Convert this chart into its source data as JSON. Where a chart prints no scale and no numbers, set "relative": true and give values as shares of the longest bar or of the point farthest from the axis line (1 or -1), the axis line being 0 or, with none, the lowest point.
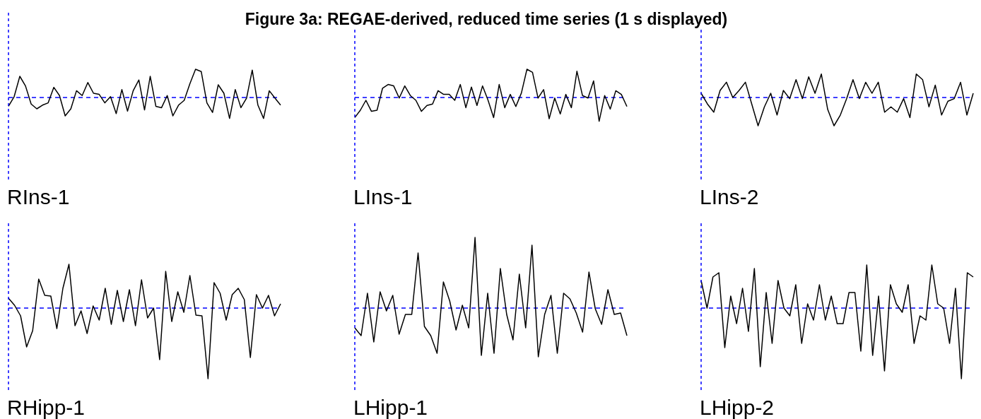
{
  "chart_data": [
    {
      "type": "other",
      "title": "Figure 3a: REGAE-derived, reduced time series (1 s displayed)"
    },
    {
      "type": "line",
      "xlabel": "RIns-1",
      "relative": true,
      "marker": "none",
      "categories": [
        null,
        null,
        null,
        null,
        null,
        null,
        null,
        null,
        null,
        null,
        null,
        null,
        null,
        null,
        null,
        null,
        null,
        null,
        null,
        null,
        null,
        null,
        null,
        null,
        null,
        null,
        null,
        null,
        null,
        null,
        null,
        null,
        null,
        null,
        null,
        null,
        null,
        null,
        null,
        null,
        null,
        null,
        null,
        null,
        null,
        null,
        null,
        null,
        null
      ],
      "series": [
        {
          "color": "#000000",
          "values": [
            -0.31,
            0.03,
            0.75,
            0.41,
            -0.23,
            -0.4,
            -0.27,
            -0.19,
            0.36,
            0.07,
            -0.65,
            -0.4,
            0.24,
            0.07,
            0.53,
            0.15,
            0.11,
            -0.19,
            0.03,
            -0.57,
            0.28,
            -0.48,
            0.24,
            0.62,
            -0.44,
            0.75,
            -0.31,
            -0.36,
            0.07,
            -0.65,
            -0.27,
            -0.1,
            0.49,
            1.0,
            0.92,
            -0.19,
            -0.53,
            0.45,
            0.15,
            -0.74,
            0.28,
            -0.36,
            -0.02,
            0.97,
            -0.27,
            -0.74,
            0.24,
            -0.02,
            -0.27
          ]
        }
      ],
      "ref_lines": [
        {
          "axis": "y",
          "value": 0,
          "color": "#0000ff",
          "line_style": "dashed"
        }
      ]
    },
    {
      "type": "line",
      "xlabel": "LIns-1",
      "relative": true,
      "marker": "none",
      "categories": [
        null,
        null,
        null,
        null,
        null,
        null,
        null,
        null,
        null,
        null,
        null,
        null,
        null,
        null,
        null,
        null,
        null,
        null,
        null,
        null,
        null,
        null,
        null,
        null,
        null,
        null,
        null,
        null,
        null,
        null,
        null,
        null,
        null,
        null,
        null,
        null,
        null,
        null,
        null,
        null,
        null,
        null,
        null,
        null,
        null,
        null,
        null,
        null,
        null,
        null
      ],
      "series": [
        {
          "color": "#000000",
          "values": [
            -0.71,
            -0.45,
            -0.1,
            -0.49,
            -0.45,
            0.33,
            0.46,
            0.41,
            -0.02,
            0.41,
            0.07,
            -0.1,
            -0.49,
            -0.28,
            -0.23,
            0.24,
            0.11,
            0.11,
            -0.1,
            0.46,
            -0.36,
            0.37,
            -0.28,
            0.41,
            -0.1,
            -0.71,
            0.46,
            -0.36,
            0.11,
            -0.32,
            0.16,
            1.0,
            0.89,
            -0.02,
            0.28,
            -0.75,
            -0.02,
            -0.58,
            0.11,
            -0.36,
            0.93,
            0.07,
            -0.02,
            0.59,
            -0.84,
            0.07,
            -0.41,
            0.24,
            0.11,
            -0.32
          ]
        }
      ],
      "ref_lines": [
        {
          "axis": "y",
          "value": 0,
          "color": "#0000ff",
          "line_style": "dashed"
        }
      ]
    },
    {
      "type": "line",
      "xlabel": "LIns-2",
      "relative": true,
      "marker": "none",
      "categories": [
        null,
        null,
        null,
        null,
        null,
        null,
        null,
        null,
        null,
        null,
        null,
        null,
        null,
        null,
        null,
        null,
        null,
        null,
        null,
        null,
        null,
        null,
        null,
        null,
        null,
        null,
        null,
        null,
        null,
        null,
        null,
        null,
        null,
        null,
        null,
        null,
        null,
        null,
        null,
        null,
        null,
        null,
        null,
        null
      ],
      "series": [
        {
          "color": "#000000",
          "values": [
            0.15,
            -0.23,
            -0.52,
            0.25,
            0.54,
            0,
            0.25,
            0.54,
            -0.23,
            -1.0,
            -0.33,
            0.15,
            -0.62,
            0.25,
            -0.04,
            0.63,
            -0.04,
            0.73,
            0.15,
            0.83,
            -0.42,
            -1.0,
            -0.62,
            -0.04,
            0.63,
            -0.04,
            0.54,
            0.15,
            0.54,
            -0.52,
            -0.33,
            -0.52,
            -0.04,
            -0.71,
            0.83,
            0.63,
            -0.33,
            0.44,
            -0.62,
            -0.13,
            -0.04,
            0.54,
            -0.62,
            0.15
          ]
        }
      ],
      "ref_lines": [
        {
          "axis": "y",
          "value": 0,
          "color": "#0000ff",
          "line_style": "dashed"
        }
      ]
    },
    {
      "type": "line",
      "xlabel": "RHipp-1",
      "relative": true,
      "marker": "none",
      "categories": [
        null,
        null,
        null,
        null,
        null,
        null,
        null,
        null,
        null,
        null,
        null,
        null,
        null,
        null,
        null,
        null,
        null,
        null,
        null,
        null,
        null,
        null,
        null,
        null,
        null,
        null,
        null,
        null,
        null,
        null,
        null,
        null,
        null,
        null,
        null,
        null,
        null,
        null,
        null,
        null,
        null,
        null,
        null,
        null,
        null,
        null
      ],
      "series": [
        {
          "color": "#000000",
          "values": [
            0.14,
            0.04,
            -0.11,
            -0.55,
            -0.32,
            0.41,
            0.18,
            0.17,
            -0.29,
            0.28,
            0.62,
            -0.25,
            -0.04,
            -0.36,
            0.03,
            -0.17,
            0.28,
            -0.23,
            0.25,
            -0.19,
            0.26,
            -0.25,
            0.4,
            -0.14,
            0,
            -0.73,
            0.52,
            -0.19,
            0.23,
            -0.06,
            0.46,
            -0.1,
            -0.11,
            -1.0,
            0.36,
            0.21,
            -0.17,
            0.19,
            0.28,
            0.12,
            -0.7,
            0.19,
            0,
            0.18,
            -0.11,
            0.06
          ]
        }
      ],
      "ref_lines": [
        {
          "axis": "y",
          "value": 0,
          "color": "#0000ff",
          "line_style": "dashed"
        }
      ]
    },
    {
      "type": "line",
      "xlabel": "LHipp-1",
      "relative": true,
      "marker": "none",
      "categories": [
        null,
        null,
        null,
        null,
        null,
        null,
        null,
        null,
        null,
        null,
        null,
        null,
        null,
        null,
        null,
        null,
        null,
        null,
        null,
        null,
        null,
        null,
        null,
        null,
        null,
        null,
        null,
        null,
        null,
        null,
        null,
        null,
        null,
        null,
        null,
        null,
        null,
        null,
        null,
        null,
        null,
        null,
        null,
        null
      ],
      "series": [
        {
          "color": "#000000",
          "values": [
            -0.28,
            -0.39,
            0.21,
            -0.48,
            0.23,
            -0.04,
            0.18,
            -0.37,
            -0.09,
            -0.09,
            0.78,
            -0.26,
            -0.39,
            -0.64,
            0.37,
            0.1,
            -0.31,
            0.04,
            -0.28,
            1.0,
            -0.67,
            0.21,
            -0.64,
            0.56,
            -0.09,
            -0.45,
            0.48,
            -0.28,
            0.89,
            -0.69,
            -0.09,
            0.18,
            -0.64,
            0.21,
            0.13,
            -0.07,
            -0.34,
            0.51,
            -0.01,
            -0.23,
            0.26,
            -0.09,
            -0.07,
            -0.39
          ]
        }
      ],
      "ref_lines": [
        {
          "axis": "y",
          "value": 0,
          "color": "#0000ff",
          "line_style": "dashed"
        }
      ]
    },
    {
      "type": "line",
      "xlabel": "LHipp-2",
      "relative": true,
      "marker": "none",
      "categories": [
        null,
        null,
        null,
        null,
        null,
        null,
        null,
        null,
        null,
        null,
        null,
        null,
        null,
        null,
        null,
        null,
        null,
        null,
        null,
        null,
        null,
        null,
        null,
        null,
        null,
        null,
        null,
        null,
        null,
        null,
        null,
        null,
        null,
        null,
        null,
        null,
        null,
        null,
        null,
        null,
        null,
        null,
        null,
        null,
        null,
        null,
        null
      ],
      "series": [
        {
          "color": "#000000",
          "values": [
            0.39,
            0,
            0.44,
            0.5,
            -0.56,
            0.17,
            -0.22,
            0.28,
            -0.33,
            0.56,
            -0.83,
            0.22,
            -0.5,
            0.39,
            0,
            -0.11,
            0.33,
            -0.5,
            0.06,
            -0.17,
            0.33,
            -0.17,
            0.17,
            -0.22,
            -0.22,
            0.22,
            0.22,
            -0.61,
            0.61,
            -0.67,
            0.17,
            -0.89,
            0.33,
            0.06,
            -0.06,
            0.33,
            -0.5,
            -0.11,
            -0.17,
            0.61,
            0.06,
            0,
            -0.5,
            0.28,
            -1.0,
            0.5,
            0.44
          ]
        }
      ],
      "ref_lines": [
        {
          "axis": "y",
          "value": 0,
          "color": "#0000ff",
          "line_style": "dashed"
        }
      ]
    }
  ]
}
